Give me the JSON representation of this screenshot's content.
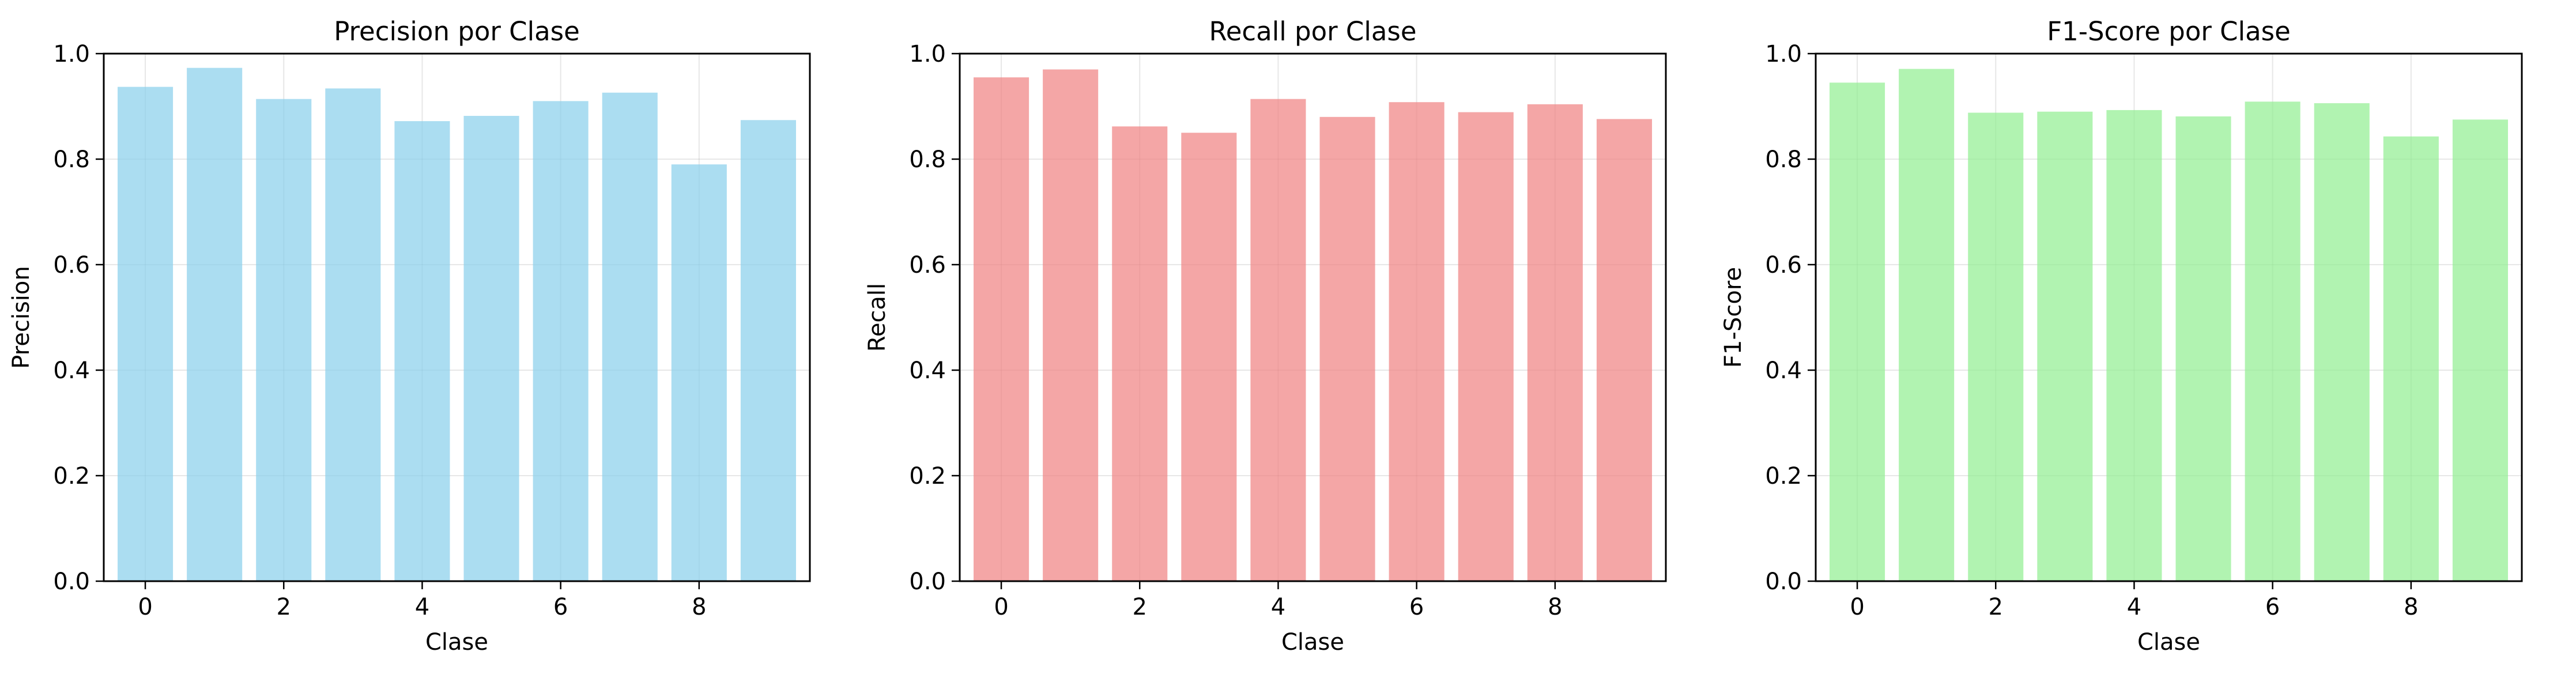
{
  "chart_data": [
    {
      "type": "bar",
      "title": "Precision por Clase",
      "xlabel": "Clase",
      "ylabel": "Precision",
      "categories": [
        0,
        1,
        2,
        3,
        4,
        5,
        6,
        7,
        8,
        9
      ],
      "values": [
        0.937,
        0.973,
        0.914,
        0.934,
        0.872,
        0.882,
        0.91,
        0.926,
        0.79,
        0.874
      ],
      "ylim": [
        0,
        1.0
      ],
      "xlim": [
        -0.6,
        9.6
      ],
      "xticks": [
        0,
        2,
        4,
        6,
        8
      ],
      "xtick_labels": [
        "0",
        "2",
        "4",
        "6",
        "8"
      ],
      "yticks": [
        0.0,
        0.2,
        0.4,
        0.6,
        0.8,
        1.0
      ],
      "ytick_labels": [
        "0.0",
        "0.2",
        "0.4",
        "0.6",
        "0.8",
        "1.0"
      ],
      "grid": true,
      "color": "#87CEEB"
    },
    {
      "type": "bar",
      "title": "Recall por Clase",
      "xlabel": "Clase",
      "ylabel": "Recall",
      "categories": [
        0,
        1,
        2,
        3,
        4,
        5,
        6,
        7,
        8,
        9
      ],
      "values": [
        0.955,
        0.97,
        0.862,
        0.85,
        0.914,
        0.88,
        0.908,
        0.889,
        0.904,
        0.876
      ],
      "ylim": [
        0,
        1.0
      ],
      "xlim": [
        -0.6,
        9.6
      ],
      "xticks": [
        0,
        2,
        4,
        6,
        8
      ],
      "xtick_labels": [
        "0",
        "2",
        "4",
        "6",
        "8"
      ],
      "yticks": [
        0.0,
        0.2,
        0.4,
        0.6,
        0.8,
        1.0
      ],
      "ytick_labels": [
        "0.0",
        "0.2",
        "0.4",
        "0.6",
        "0.8",
        "1.0"
      ],
      "grid": true,
      "color": "#F08080"
    },
    {
      "type": "bar",
      "title": "F1-Score por Clase",
      "xlabel": "Clase",
      "ylabel": "F1-Score",
      "categories": [
        0,
        1,
        2,
        3,
        4,
        5,
        6,
        7,
        8,
        9
      ],
      "values": [
        0.945,
        0.971,
        0.888,
        0.89,
        0.893,
        0.881,
        0.909,
        0.906,
        0.843,
        0.875
      ],
      "ylim": [
        0,
        1.0
      ],
      "xlim": [
        -0.6,
        9.6
      ],
      "xticks": [
        0,
        2,
        4,
        6,
        8
      ],
      "xtick_labels": [
        "0",
        "2",
        "4",
        "6",
        "8"
      ],
      "yticks": [
        0.0,
        0.2,
        0.4,
        0.6,
        0.8,
        1.0
      ],
      "ytick_labels": [
        "0.0",
        "0.2",
        "0.4",
        "0.6",
        "0.8",
        "1.0"
      ],
      "grid": true,
      "color": "#90EE90"
    }
  ]
}
